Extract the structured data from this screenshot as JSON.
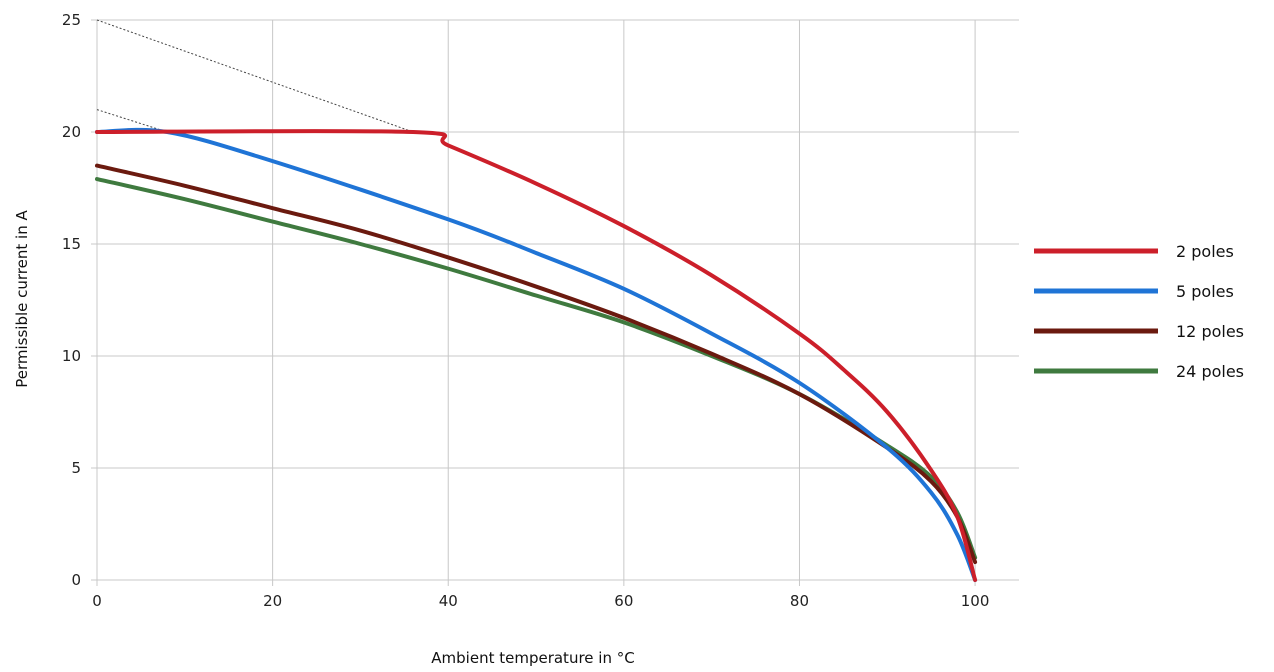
{
  "chart_data": {
    "type": "line",
    "title": "",
    "xlabel": "Ambient temperature in °C",
    "ylabel": "Permissible current in A",
    "xlim": [
      0,
      105
    ],
    "ylim": [
      0,
      25
    ],
    "x_ticks": [
      0,
      20,
      40,
      60,
      80,
      100
    ],
    "y_ticks": [
      0,
      5,
      10,
      15,
      20,
      25
    ],
    "grid": true,
    "legend_position": "right",
    "series": [
      {
        "name": "2 poles",
        "color": "#cc1f2a",
        "x": [
          0,
          36,
          40,
          50,
          60,
          70,
          80,
          85,
          90,
          95,
          98,
          100
        ],
        "y": [
          20,
          20,
          19.4,
          17.7,
          15.8,
          13.6,
          11.0,
          9.4,
          7.5,
          4.9,
          2.8,
          0
        ]
      },
      {
        "name": "5 poles",
        "color": "#1f74d6",
        "x": [
          0,
          8,
          20,
          40,
          50,
          60,
          70,
          80,
          90,
          95,
          98,
          100
        ],
        "y": [
          20,
          20,
          18.7,
          16.1,
          14.6,
          13.0,
          11.0,
          8.8,
          5.9,
          3.9,
          2.0,
          0
        ]
      },
      {
        "name": "12 poles",
        "color": "#6b1a0f",
        "x": [
          0,
          10,
          20,
          30,
          40,
          50,
          60,
          70,
          80,
          90,
          95,
          98,
          100
        ],
        "y": [
          18.5,
          17.6,
          16.6,
          15.6,
          14.4,
          13.1,
          11.7,
          10.1,
          8.3,
          5.9,
          4.4,
          2.8,
          0.8
        ]
      },
      {
        "name": "24 poles",
        "color": "#3f7a3f",
        "x": [
          0,
          10,
          20,
          30,
          40,
          50,
          60,
          70,
          80,
          90,
          95,
          98,
          100
        ],
        "y": [
          17.9,
          17.0,
          16.0,
          15.0,
          13.9,
          12.7,
          11.5,
          10.0,
          8.3,
          6.0,
          4.6,
          3.0,
          1.0
        ]
      }
    ],
    "reference_lines": [
      {
        "style": "dotted",
        "color": "#444444",
        "x": [
          0,
          36
        ],
        "y": [
          25,
          20
        ]
      },
      {
        "style": "dotted",
        "color": "#444444",
        "x": [
          0,
          8
        ],
        "y": [
          21,
          20
        ]
      }
    ]
  }
}
